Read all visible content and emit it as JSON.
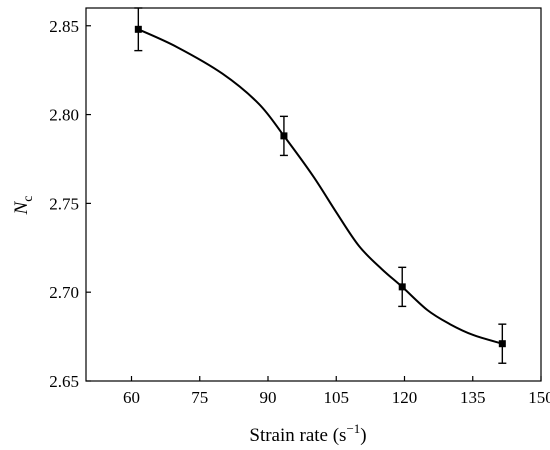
{
  "chart_data": {
    "type": "line",
    "xlabel_main": "Strain rate (s",
    "xlabel_sup": "−1",
    "xlabel_close": ")",
    "ylabel_main": "N",
    "ylabel_sub": "c",
    "xlim": [
      50,
      150
    ],
    "ylim": [
      2.65,
      2.86
    ],
    "xticks": [
      60,
      75,
      90,
      105,
      120,
      135,
      150
    ],
    "xtick_labels": [
      "60",
      "75",
      "90",
      "105",
      "120",
      "135",
      "150"
    ],
    "yticks": [
      2.65,
      2.7,
      2.75,
      2.8,
      2.85
    ],
    "ytick_labels": [
      "2.65",
      "2.70",
      "2.75",
      "2.80",
      "2.85"
    ],
    "series": [
      {
        "x": [
          61.5,
          93.5,
          119.5,
          141.5
        ],
        "y": [
          2.848,
          2.788,
          2.703,
          2.671
        ],
        "err": [
          0.012,
          0.011,
          0.011,
          0.011
        ]
      }
    ],
    "curve": {
      "x": [
        61.5,
        70,
        80,
        88,
        93.5,
        100,
        105,
        110,
        115,
        119.5,
        125,
        130,
        135,
        141.5
      ],
      "y": [
        2.848,
        2.838,
        2.823,
        2.806,
        2.788,
        2.765,
        2.745,
        2.726,
        2.713,
        2.703,
        2.69,
        2.682,
        2.676,
        2.671
      ]
    },
    "grid": false,
    "legend": "none"
  }
}
